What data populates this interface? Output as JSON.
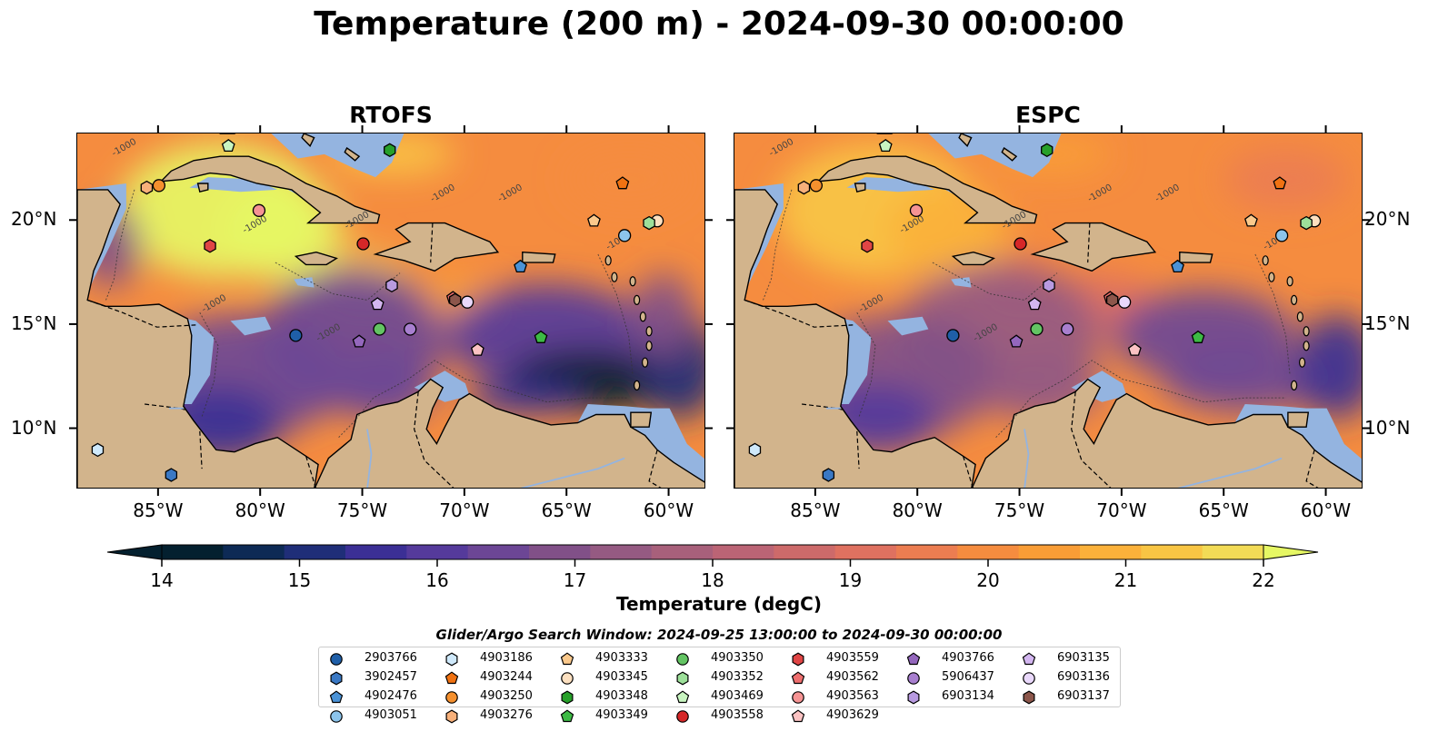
{
  "figure": {
    "title": "Temperature (200 m) - 2024-09-30 00:00:00",
    "search_window": "Glider/Argo Search Window: 2024-09-25 13:00:00 to 2024-09-30 00:00:00"
  },
  "chart_data": [
    {
      "type": "heatmap",
      "title": "RTOFS",
      "x_ticks": [
        "85°W",
        "80°W",
        "75°W",
        "70°W",
        "65°W",
        "60°W"
      ],
      "y_ticks": [
        "10°N",
        "15°N",
        "20°N"
      ],
      "xlim": [
        -89,
        -58.2
      ],
      "ylim": [
        7.1,
        24.2
      ],
      "grid": false,
      "contour_label": "-1000",
      "field_summary": {
        "gulf_of_honduras_cayman": "warm 20-22",
        "southern_caribbean_venezuela_basin": "cold 14-16",
        "colombian_basin": "15-17"
      }
    },
    {
      "type": "heatmap",
      "title": "ESPC",
      "x_ticks": [
        "85°W",
        "80°W",
        "75°W",
        "70°W",
        "65°W",
        "60°W"
      ],
      "y_ticks": [
        "10°N",
        "15°N",
        "20°N"
      ],
      "xlim": [
        -89,
        -58.2
      ],
      "ylim": [
        7.1,
        24.2
      ],
      "grid": false,
      "contour_label": "-1000"
    }
  ],
  "colorbar": {
    "label": "Temperature (degC)",
    "ticks": [
      14,
      15,
      16,
      17,
      18,
      19,
      20,
      21,
      22
    ],
    "min": 14,
    "max": 22,
    "extend": "both",
    "colors": [
      "#04202f",
      "#0d2a55",
      "#1f2e78",
      "#3b2f95",
      "#553a9b",
      "#6c4695",
      "#815088",
      "#955a82",
      "#a8607b",
      "#bb6475",
      "#cd6a6a",
      "#df7160",
      "#ec7d51",
      "#f58c3f",
      "#f99d36",
      "#fbb13a",
      "#f8c544",
      "#f2db56"
    ],
    "under_color": "#04202f",
    "over_color": "#e6f764"
  },
  "floats": [
    {
      "id": "2903766",
      "marker": "circle",
      "color": "#1f5fa8",
      "lon": -78.3,
      "lat": 14.5
    },
    {
      "id": "3902457",
      "marker": "hexagon",
      "color": "#3a78c4",
      "lon": -84.4,
      "lat": 7.8
    },
    {
      "id": "4902476",
      "marker": "pentagon",
      "color": "#4a92d6",
      "lon": -67.3,
      "lat": 17.8
    },
    {
      "id": "4903051",
      "marker": "circle",
      "color": "#8cc4ec",
      "lon": -62.2,
      "lat": 19.3
    },
    {
      "id": "4903186",
      "marker": "hexagon",
      "color": "#cfe9fb",
      "lon": -88.0,
      "lat": 9.0
    },
    {
      "id": "4903244",
      "marker": "pentagon",
      "color": "#f07212",
      "lon": -62.3,
      "lat": 21.8
    },
    {
      "id": "4903250",
      "marker": "circle",
      "color": "#f5902e",
      "lon": -85.0,
      "lat": 21.7
    },
    {
      "id": "4903276",
      "marker": "hexagon",
      "color": "#f7b07a",
      "lon": -85.6,
      "lat": 21.6
    },
    {
      "id": "4903333",
      "marker": "pentagon",
      "color": "#fbc98c",
      "lon": -63.7,
      "lat": 20.0
    },
    {
      "id": "4903345",
      "marker": "circle",
      "color": "#fde0c0",
      "lon": -60.6,
      "lat": 20.0
    },
    {
      "id": "4903348",
      "marker": "hexagon",
      "color": "#27a02a",
      "lon": -73.7,
      "lat": 23.4
    },
    {
      "id": "4903349",
      "marker": "pentagon",
      "color": "#3dba45",
      "lon": -66.3,
      "lat": 14.4
    },
    {
      "id": "4903350",
      "marker": "circle",
      "color": "#63c463",
      "lon": -74.2,
      "lat": 14.8
    },
    {
      "id": "4903352",
      "marker": "hexagon",
      "color": "#9de09a",
      "lon": -61.0,
      "lat": 19.9
    },
    {
      "id": "4903469",
      "marker": "pentagon",
      "color": "#c8f5c0",
      "lon": -81.6,
      "lat": 23.6
    },
    {
      "id": "4903558",
      "marker": "circle",
      "color": "#d62728",
      "lon": -75.0,
      "lat": 18.9
    },
    {
      "id": "4903559",
      "marker": "hexagon",
      "color": "#e04545",
      "lon": -82.5,
      "lat": 18.8
    },
    {
      "id": "4903562",
      "marker": "pentagon",
      "color": "#ee6e6e",
      "lon": -70.6,
      "lat": 16.3
    },
    {
      "id": "4903563",
      "marker": "circle",
      "color": "#f59393",
      "lon": -80.1,
      "lat": 20.5
    },
    {
      "id": "4903629",
      "marker": "pentagon",
      "color": "#fcc3c3",
      "lon": -69.4,
      "lat": 13.8
    },
    {
      "id": "4903766",
      "marker": "pentagon",
      "color": "#9467bd",
      "lon": -75.2,
      "lat": 14.2
    },
    {
      "id": "5906437",
      "marker": "circle",
      "color": "#a87fcf",
      "lon": -72.7,
      "lat": 14.8
    },
    {
      "id": "6903134",
      "marker": "hexagon",
      "color": "#b89ae0",
      "lon": -73.6,
      "lat": 16.9
    },
    {
      "id": "6903135",
      "marker": "pentagon",
      "color": "#d3b6f0",
      "lon": -74.3,
      "lat": 16.0
    },
    {
      "id": "6903136",
      "marker": "circle",
      "color": "#e9d8fb",
      "lon": -69.9,
      "lat": 16.1
    },
    {
      "id": "6903137",
      "marker": "hexagon",
      "color": "#8c564b",
      "lon": -70.5,
      "lat": 16.2
    }
  ],
  "legend_order": [
    [
      "2903766",
      "3902457",
      "4902476",
      "4903051"
    ],
    [
      "4903186",
      "4903244",
      "4903250",
      "4903276"
    ],
    [
      "4903333",
      "4903345",
      "4903348",
      "4903349"
    ],
    [
      "4903350",
      "4903352",
      "4903469",
      "4903558"
    ],
    [
      "4903559",
      "4903562",
      "4903563",
      "4903629"
    ],
    [
      "4903766",
      "5906437",
      "6903134"
    ],
    [
      "6903135",
      "6903136",
      "6903137"
    ]
  ]
}
